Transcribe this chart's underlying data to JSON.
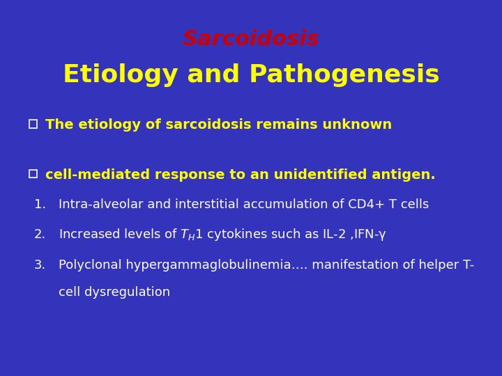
{
  "background_color": "#3333BB",
  "title_line1": "Sarcoidosis",
  "title_line1_color": "#CC0000",
  "title_line2": "Etiology and Pathogenesis",
  "title_line2_color": "#FFFF00",
  "title1_fontsize": 22,
  "title2_fontsize": 26,
  "bullet_fontsize": 14,
  "numbered_fontsize": 13,
  "bullet_color": "#FFFF00",
  "text_color": "#FFFFFF",
  "checkbox_color": "#FFFFFF",
  "bullet1": "The etiology of sarcoidosis remains unknown",
  "bullet2": "cell-mediated response to an unidentified antigen.",
  "item1": "Intra-alveolar and interstitial accumulation of CD4+ T cells",
  "item2": "Increased levels of $T_H$1 cytokines such as IL-2 ,IFN-γ",
  "item3_line1": "Polyclonal hypergammaglobulinemia…. manifestation of helper T-",
  "item3_line2": "cell dysregulation",
  "fig_width": 7.2,
  "fig_height": 5.4,
  "dpi": 100
}
